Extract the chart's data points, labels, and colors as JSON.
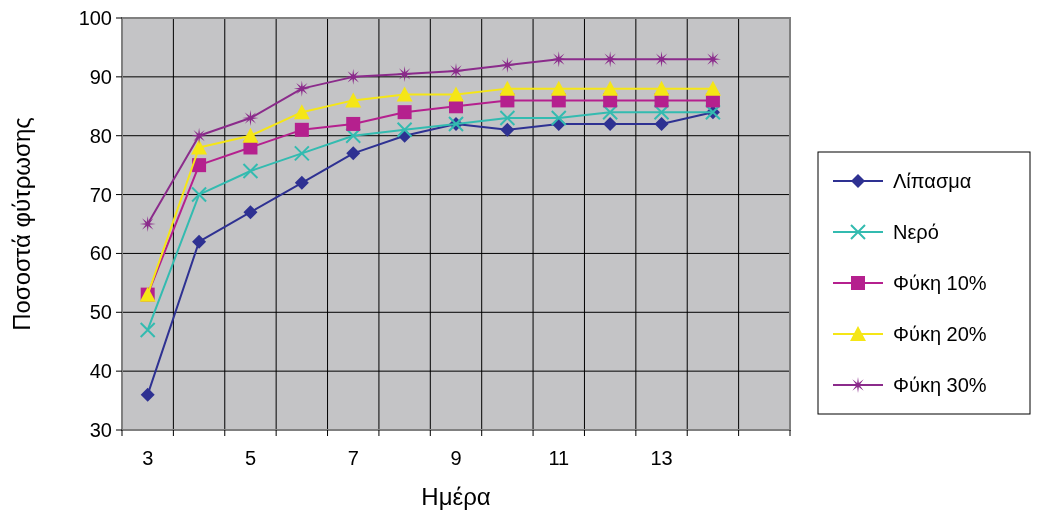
{
  "chart_data": {
    "type": "line",
    "xlabel": "Ημέρα",
    "ylabel": "Ποσοστά φύτρωσης",
    "categories": [
      "3",
      null,
      "5",
      null,
      "7",
      null,
      "9",
      null,
      "11",
      null,
      "13",
      null,
      null
    ],
    "ylim": [
      30,
      100
    ],
    "yticks": [
      30,
      40,
      50,
      60,
      70,
      80,
      90,
      100
    ],
    "grid": true,
    "legend": "right",
    "series": [
      {
        "name": "Λίπασμα",
        "color": "#2e3192",
        "marker": "diamond",
        "values": [
          36,
          62,
          67,
          72,
          77,
          80,
          82,
          81,
          82,
          82,
          82,
          84,
          null
        ]
      },
      {
        "name": "Νερό",
        "color": "#33bbb0",
        "marker": "cross",
        "values": [
          47,
          70,
          74,
          77,
          80,
          81,
          82,
          83,
          83,
          84,
          84,
          84,
          null
        ]
      },
      {
        "name": "Φύκη 10%",
        "color": "#b5208e",
        "marker": "square",
        "values": [
          53,
          75,
          78,
          81,
          82,
          84,
          85,
          86,
          86,
          86,
          86,
          86,
          null
        ]
      },
      {
        "name": "Φύκη 20%",
        "color": "#f5e616",
        "marker": "triangle",
        "values": [
          53,
          78,
          80,
          84,
          86,
          87,
          87,
          88,
          88,
          88,
          88,
          88,
          null
        ]
      },
      {
        "name": "Φύκη 30%",
        "color": "#8b2b8b",
        "marker": "star",
        "values": [
          65,
          80,
          83,
          88,
          90,
          90.5,
          91,
          92,
          93,
          93,
          93,
          93,
          null
        ]
      }
    ]
  }
}
